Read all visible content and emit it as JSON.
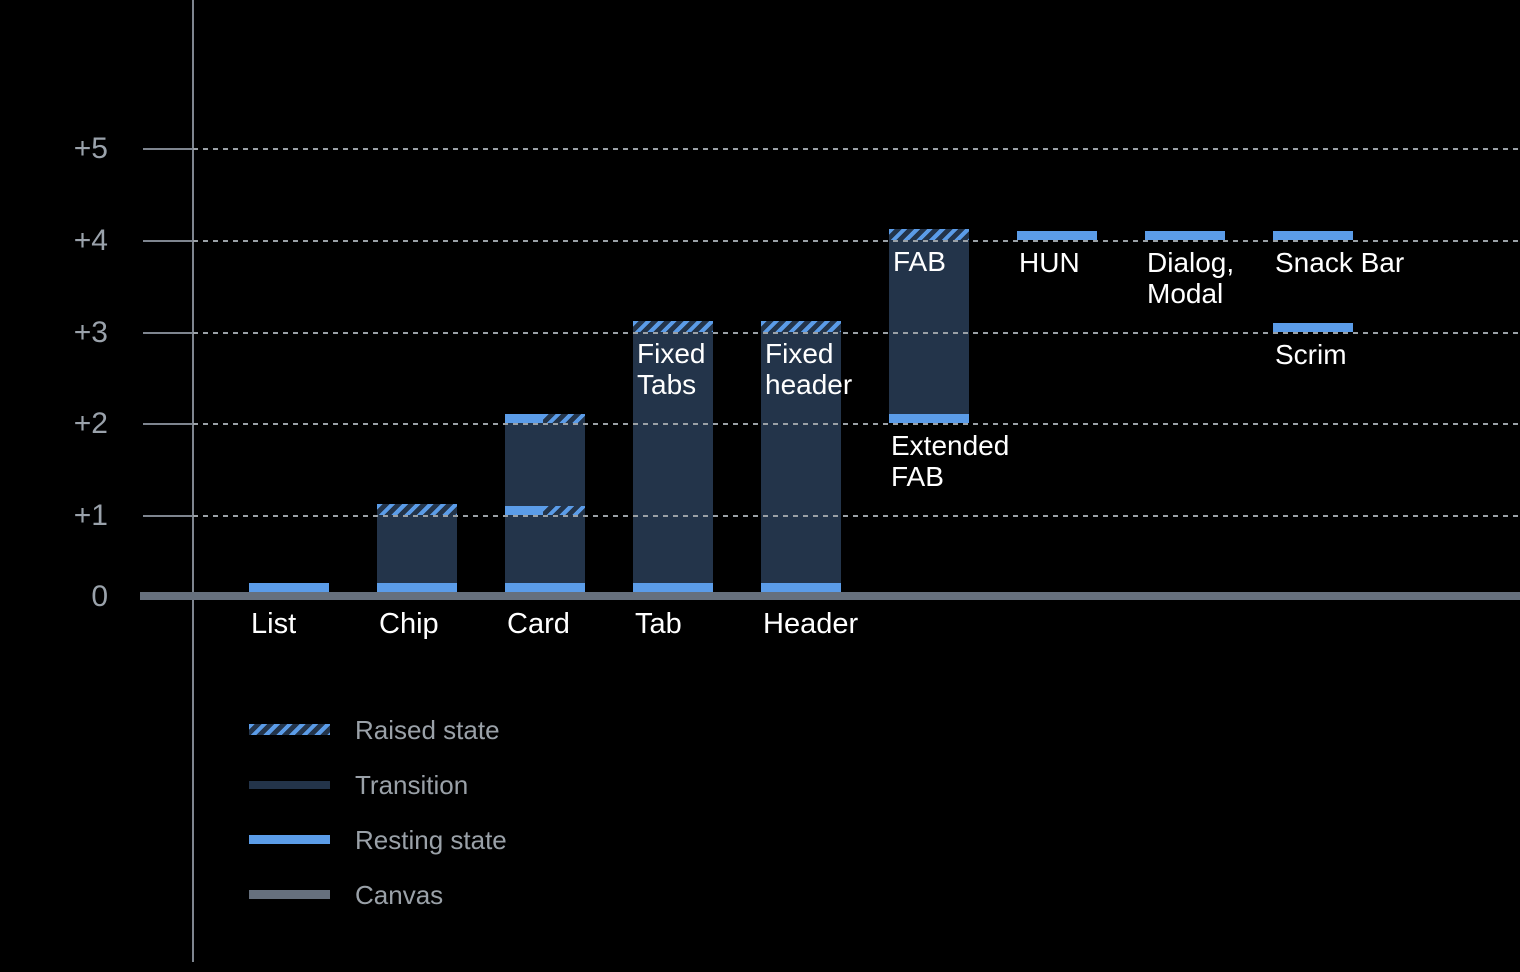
{
  "chart_data": {
    "type": "bar",
    "y_axis": {
      "ticks": [
        "+5",
        "+4",
        "+3",
        "+2",
        "+1",
        "0"
      ],
      "range": [
        0,
        5
      ],
      "grid": "dotted"
    },
    "legend_position": "bottom-left",
    "legend": [
      {
        "label": "Raised state",
        "swatch": "raised"
      },
      {
        "label": "Transition",
        "swatch": "transition"
      },
      {
        "label": "Resting state",
        "swatch": "resting"
      },
      {
        "label": "Canvas",
        "swatch": "canvas"
      }
    ],
    "colors": {
      "resting": "#5b9ce8",
      "transition": "#23344a",
      "canvas": "#66707d",
      "background": "#000000",
      "gridline": "#9aa0a6",
      "axis": "#7e858f",
      "tick_label": "#9aa2ab",
      "legend_text": "#9aa1a8",
      "bar_label": "#ffffff"
    },
    "bars": [
      {
        "id": "list",
        "col": 0,
        "axis_label": "List",
        "bands": [
          {
            "level": 0,
            "type": "resting"
          }
        ]
      },
      {
        "id": "chip",
        "col": 1,
        "axis_label": "Chip",
        "span": [
          0,
          1
        ],
        "bands": [
          {
            "level": 0,
            "type": "resting"
          },
          {
            "level": 1,
            "type": "raised"
          }
        ]
      },
      {
        "id": "card",
        "col": 2,
        "axis_label": "Card",
        "span": [
          0,
          2
        ],
        "bands": [
          {
            "level": 0,
            "type": "resting"
          },
          {
            "level": 1,
            "type": "mixed"
          },
          {
            "level": 2,
            "type": "mixed"
          }
        ]
      },
      {
        "id": "tab",
        "col": 3,
        "axis_label": "Tab",
        "span": [
          0,
          3
        ],
        "inner_label": [
          "Fixed",
          "Tabs"
        ],
        "bands": [
          {
            "level": 0,
            "type": "resting"
          },
          {
            "level": 3,
            "type": "raised"
          }
        ]
      },
      {
        "id": "header",
        "col": 4,
        "axis_label": "Header",
        "span": [
          0,
          3
        ],
        "inner_label": [
          "Fixed",
          "header"
        ],
        "bands": [
          {
            "level": 0,
            "type": "resting"
          },
          {
            "level": 3,
            "type": "raised"
          }
        ]
      },
      {
        "id": "fab",
        "col": 5,
        "span": [
          2,
          4
        ],
        "inner_label": [
          "FAB"
        ],
        "below_label": [
          "Extended",
          "FAB"
        ],
        "bands": [
          {
            "level": 2,
            "type": "resting"
          },
          {
            "level": 4,
            "type": "raised"
          }
        ]
      },
      {
        "id": "hun",
        "col": 6,
        "below_label": [
          "HUN"
        ],
        "bands": [
          {
            "level": 4,
            "type": "resting"
          }
        ]
      },
      {
        "id": "dialog-modal",
        "col": 7,
        "below_label": [
          "Dialog,",
          "Modal"
        ],
        "bands": [
          {
            "level": 4,
            "type": "resting"
          }
        ]
      },
      {
        "id": "snack-bar",
        "col": 8,
        "below_label": [
          "Snack Bar"
        ],
        "bands": [
          {
            "level": 4,
            "type": "resting"
          }
        ]
      },
      {
        "id": "scrim",
        "col": 8,
        "below_label": [
          "Scrim"
        ],
        "bands": [
          {
            "level": 3,
            "type": "resting"
          }
        ]
      }
    ]
  }
}
